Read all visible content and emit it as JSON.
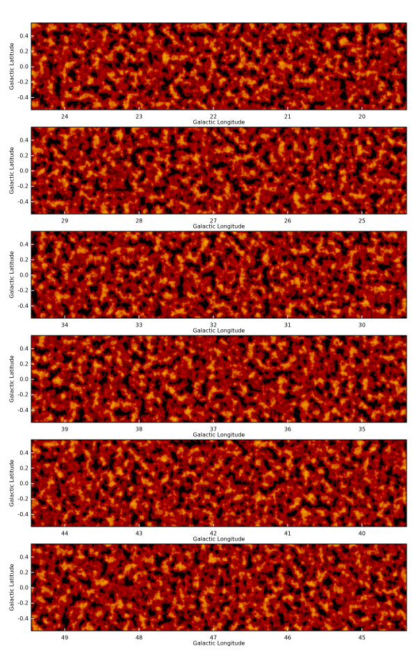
{
  "chart_data": [
    {
      "type": "image",
      "xlabel": "Galactic Longitude",
      "ylabel": "Galactic Latitude",
      "xlim": [
        24.45,
        19.4
      ],
      "ylim": [
        -0.56,
        0.57
      ],
      "xticks": [
        24,
        23,
        22,
        21,
        20
      ],
      "yticks": [
        0.4,
        0.2,
        {
          "value": 0,
          "label": "0.0"
        },
        -0.2,
        -0.4
      ]
    },
    {
      "type": "image",
      "xlabel": "Galactic Longitude",
      "ylabel": "Galactic Latitude",
      "xlim": [
        29.45,
        24.4
      ],
      "ylim": [
        -0.56,
        0.57
      ],
      "xticks": [
        29,
        28,
        27,
        26,
        25
      ],
      "yticks": [
        0.4,
        0.2,
        {
          "value": 0,
          "label": "0.0"
        },
        -0.2,
        -0.4
      ]
    },
    {
      "type": "image",
      "xlabel": "Galactic Longitude",
      "ylabel": "Galactic Latitude",
      "xlim": [
        34.45,
        29.4
      ],
      "ylim": [
        -0.56,
        0.57
      ],
      "xticks": [
        34,
        33,
        32,
        31,
        30
      ],
      "yticks": [
        0.4,
        0.2,
        {
          "value": 0,
          "label": "0.0"
        },
        -0.2,
        -0.4
      ]
    },
    {
      "type": "image",
      "xlabel": "Galactic Longitude",
      "ylabel": "Galactic Latitude",
      "xlim": [
        39.45,
        34.4
      ],
      "ylim": [
        -0.56,
        0.57
      ],
      "xticks": [
        39,
        38,
        37,
        36,
        35
      ],
      "yticks": [
        0.4,
        0.2,
        {
          "value": 0,
          "label": "0.0"
        },
        -0.2,
        -0.4
      ]
    },
    {
      "type": "image",
      "xlabel": "Galactic Longitude",
      "ylabel": "Galactic Latitude",
      "xlim": [
        44.45,
        39.4
      ],
      "ylim": [
        -0.56,
        0.57
      ],
      "xticks": [
        44,
        43,
        42,
        41,
        40
      ],
      "yticks": [
        0.4,
        0.2,
        {
          "value": 0,
          "label": "0.0"
        },
        -0.2,
        -0.4
      ]
    },
    {
      "type": "image",
      "xlabel": "Galactic Longitude",
      "ylabel": "Galactic Latitude",
      "xlim": [
        49.45,
        44.4
      ],
      "ylim": [
        -0.56,
        0.57
      ],
      "xticks": [
        49,
        48,
        47,
        46,
        45
      ],
      "yticks": [
        0.4,
        0.2,
        {
          "value": 0,
          "label": "0.0"
        },
        -0.2,
        -0.4
      ]
    }
  ]
}
